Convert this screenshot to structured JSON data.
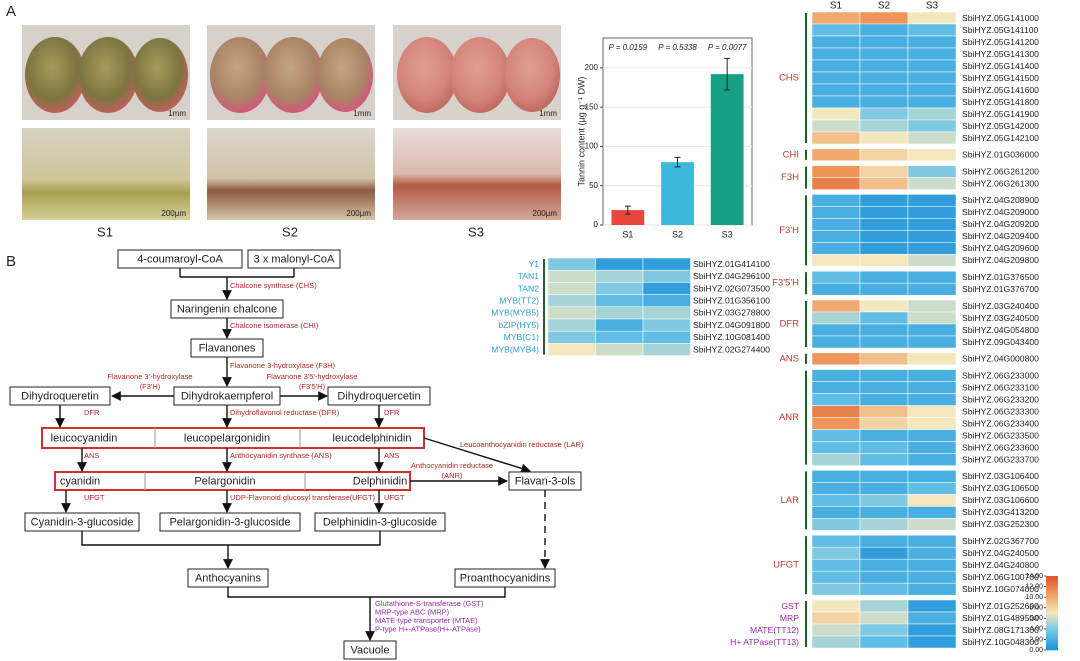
{
  "panel_labels": [
    "A",
    "B"
  ],
  "photos": {
    "samples": [
      "S1",
      "S2",
      "S3"
    ],
    "top_scale": "1mm",
    "bottom_scale": "200μm"
  },
  "chart_data": [
    {
      "type": "bar",
      "ylabel": "Tannin content (μg g⁻¹ DW)",
      "categories": [
        "S1",
        "S2",
        "S3"
      ],
      "values": [
        19,
        80,
        192
      ],
      "errors": [
        5,
        6,
        20
      ],
      "colors": [
        "#e8473d",
        "#3cb8da",
        "#16a085"
      ],
      "ylim": [
        0,
        238
      ],
      "yticks": [
        0,
        50,
        100,
        150,
        200
      ],
      "grid": true,
      "annotations": [
        "P = 0.0159",
        "P = 0.5338",
        "P = 0.0077"
      ]
    },
    {
      "type": "heatmap",
      "clim": [
        0,
        14
      ],
      "colormap": [
        "#1a8fd6",
        "#6cc5e8",
        "#f3e8bd",
        "#f0a062",
        "#e0522a"
      ],
      "label_color": "#2a9fd6",
      "groups": [
        {
          "rows": [
            {
              "label": "Y1",
              "gene": "SbiHYZ.01G414100",
              "values": [
                4,
                1,
                1
              ]
            },
            {
              "label": "TAN1",
              "gene": "SbiHYZ.04G296100",
              "values": [
                6,
                5,
                4
              ]
            },
            {
              "label": "TAN2",
              "gene": "SbiHYZ.02G073500",
              "values": [
                6,
                4,
                1
              ]
            },
            {
              "label": "MYB(TT2)",
              "gene": "SbiHYZ.01G356100",
              "values": [
                5,
                3,
                2
              ]
            },
            {
              "label": "MYB(MYB5)",
              "gene": "SbiHYZ.03G278800",
              "values": [
                6,
                5,
                5
              ]
            },
            {
              "label": "bZIP(HY5)",
              "gene": "SbiHYZ.04G091800",
              "values": [
                5,
                2,
                4
              ]
            },
            {
              "label": "MYB(C1)",
              "gene": "SbiHYZ.10G081400",
              "values": [
                4,
                3,
                3
              ]
            },
            {
              "label": "MYB(MYB4)",
              "gene": "SbiHYZ.02G274400",
              "values": [
                7,
                6,
                5
              ]
            }
          ]
        }
      ]
    },
    {
      "type": "heatmap",
      "columns": [
        "S1",
        "S2",
        "S3"
      ],
      "clim": [
        0,
        14
      ],
      "colormap": [
        "#1a8fd6",
        "#6cc5e8",
        "#f3e8bd",
        "#f0a062",
        "#e0522a"
      ],
      "label_color": "#c0392b",
      "row_label_color": "#9b27af",
      "colorbar_ticks": [
        {
          "value": 14,
          "label": "14.00"
        },
        {
          "value": 12,
          "label": "12.00"
        },
        {
          "value": 10,
          "label": "10.00"
        },
        {
          "value": 8,
          "label": "8.00"
        },
        {
          "value": 6,
          "label": "6.00"
        },
        {
          "value": 4,
          "label": "4.00"
        },
        {
          "value": 2,
          "label": "2.00"
        },
        {
          "value": 0,
          "label": "0.00"
        }
      ],
      "groups": [
        {
          "label": "CHS",
          "rows": [
            {
              "gene": "SbiHYZ.05G141000",
              "values": [
                10,
                11,
                7
              ]
            },
            {
              "gene": "SbiHYZ.05G141100",
              "values": [
                3,
                2,
                3
              ]
            },
            {
              "gene": "SbiHYZ.05G141200",
              "values": [
                2,
                2,
                2
              ]
            },
            {
              "gene": "SbiHYZ.05G141300",
              "values": [
                2,
                2,
                2
              ]
            },
            {
              "gene": "SbiHYZ.05G141400",
              "values": [
                2,
                2,
                2
              ]
            },
            {
              "gene": "SbiHYZ.05G141500",
              "values": [
                2,
                2,
                2
              ]
            },
            {
              "gene": "SbiHYZ.05G141600",
              "values": [
                2,
                2,
                2
              ]
            },
            {
              "gene": "SbiHYZ.05G141800",
              "values": [
                2,
                2,
                2
              ]
            },
            {
              "gene": "SbiHYZ.05G141900",
              "values": [
                7,
                4,
                5
              ]
            },
            {
              "gene": "SbiHYZ.05G142000",
              "values": [
                6,
                5,
                4
              ]
            },
            {
              "gene": "SbiHYZ.05G142100",
              "values": [
                9,
                7,
                6
              ]
            }
          ]
        },
        {
          "label": "CHI",
          "rows": [
            {
              "gene": "SbiHYZ.01G036000",
              "values": [
                10,
                8,
                7
              ]
            }
          ]
        },
        {
          "label": "F3H",
          "rows": [
            {
              "gene": "SbiHYZ.06G261200",
              "values": [
                11,
                8,
                4
              ]
            },
            {
              "gene": "SbiHYZ.06G261300",
              "values": [
                12,
                9,
                6
              ]
            }
          ]
        },
        {
          "label": "F3'H",
          "rows": [
            {
              "gene": "SbiHYZ.04G208900",
              "values": [
                2,
                1,
                1
              ]
            },
            {
              "gene": "SbiHYZ.04G209000",
              "values": [
                2,
                1,
                1
              ]
            },
            {
              "gene": "SbiHYZ.04G209200",
              "values": [
                2,
                1,
                1
              ]
            },
            {
              "gene": "SbiHYZ.04G209400",
              "values": [
                2,
                1,
                1
              ]
            },
            {
              "gene": "SbiHYZ.04G209600",
              "values": [
                2,
                1,
                1
              ]
            },
            {
              "gene": "SbiHYZ.04G209800",
              "values": [
                7,
                7,
                6
              ]
            }
          ]
        },
        {
          "label": "F3'5'H",
          "rows": [
            {
              "gene": "SbiHYZ.01G376500",
              "values": [
                3,
                2,
                2
              ]
            },
            {
              "gene": "SbiHYZ.01G376700",
              "values": [
                2,
                2,
                2
              ]
            }
          ]
        },
        {
          "label": "DFR",
          "rows": [
            {
              "gene": "SbiHYZ.03G240400",
              "values": [
                10,
                7,
                6
              ]
            },
            {
              "gene": "SbiHYZ.03G240500",
              "values": [
                5,
                3,
                6
              ]
            },
            {
              "gene": "SbiHYZ.04G054800",
              "values": [
                2,
                2,
                2
              ]
            },
            {
              "gene": "SbiHYZ.09G043400",
              "values": [
                2,
                2,
                2
              ]
            }
          ]
        },
        {
          "label": "ANS",
          "rows": [
            {
              "gene": "SbiHYZ.04G000800",
              "values": [
                11,
                9,
                7
              ]
            }
          ]
        },
        {
          "label": "ANR",
          "rows": [
            {
              "gene": "SbiHYZ.06G233000",
              "values": [
                2,
                2,
                2
              ]
            },
            {
              "gene": "SbiHYZ.06G233100",
              "values": [
                2,
                2,
                2
              ]
            },
            {
              "gene": "SbiHYZ.06G233200",
              "values": [
                3,
                2,
                2
              ]
            },
            {
              "gene": "SbiHYZ.06G233300",
              "values": [
                12,
                9,
                7
              ]
            },
            {
              "gene": "SbiHYZ.06G233400",
              "values": [
                11,
                8,
                7
              ]
            },
            {
              "gene": "SbiHYZ.06G233500",
              "values": [
                3,
                2,
                2
              ]
            },
            {
              "gene": "SbiHYZ.06G233600",
              "values": [
                3,
                3,
                2
              ]
            },
            {
              "gene": "SbiHYZ.06G233700",
              "values": [
                5,
                3,
                2
              ]
            }
          ]
        },
        {
          "label": "LAR",
          "rows": [
            {
              "gene": "SbiHYZ.03G106400",
              "values": [
                2,
                2,
                2
              ]
            },
            {
              "gene": "SbiHYZ.03G106500",
              "values": [
                2,
                2,
                3
              ]
            },
            {
              "gene": "SbiHYZ.03G106600",
              "values": [
                3,
                4,
                7
              ]
            },
            {
              "gene": "SbiHYZ.03G413200",
              "values": [
                2,
                2,
                2
              ]
            },
            {
              "gene": "SbiHYZ.03G252300",
              "values": [
                4,
                5,
                6
              ]
            }
          ]
        },
        {
          "label": "UFGT",
          "rows": [
            {
              "gene": "SbiHYZ.02G367700",
              "values": [
                3,
                2,
                2
              ]
            },
            {
              "gene": "SbiHYZ.04G240500",
              "values": [
                4,
                1,
                2
              ]
            },
            {
              "gene": "SbiHYZ.04G240800",
              "values": [
                3,
                2,
                2
              ]
            },
            {
              "gene": "SbiHYZ.06G100700",
              "values": [
                3,
                2,
                2
              ]
            },
            {
              "gene": "SbiHYZ.10G074000",
              "values": [
                4,
                3,
                2
              ]
            }
          ]
        },
        {
          "rows": [
            {
              "label": "GST",
              "gene": "SbiHYZ.01G252600",
              "values": [
                7,
                5,
                1
              ]
            },
            {
              "label": "MRP",
              "gene": "SbiHYZ.01G489500",
              "values": [
                8,
                6,
                2
              ]
            },
            {
              "label": "MATE(TT12)",
              "gene": "SbiHYZ.08G171300",
              "values": [
                6,
                4,
                1
              ]
            },
            {
              "label": "H+ ATPase(TT13)",
              "gene": "SbiHYZ.10G048300",
              "values": [
                5,
                3,
                1
              ]
            }
          ]
        }
      ]
    }
  ],
  "pathway": {
    "nodes": [
      "4-coumaroyl-CoA",
      "3 x malonyl-CoA",
      "Naringenin chalcone",
      "Flavanones",
      "Dihydroqueretin",
      "Dihydrokaempferol",
      "Dihydroquercetin",
      "leucocyanidin",
      "leucopelargonidin",
      "leucodelphinidin",
      "cyanidin",
      "Pelargonidin",
      "Delphinidin",
      "Flavan-3-ols",
      "Cyanidin-3-glucoside",
      "Pelargonidin-3-glucoside",
      "Delphinidin-3-glucoside",
      "Anthocyanins",
      "Proanthocyanidins",
      "Vacuole"
    ],
    "enzymes": [
      [
        "Chalcone synthase (CHS)"
      ],
      [
        "Chalcone isomerase (CHI)"
      ],
      [
        "Flavanone 3-hydroxylase (F3H)"
      ],
      [
        "Flavanone 3'-hydroxylase",
        "(F3'H)"
      ],
      [
        "Flavanone 3'5'-hydroxylase",
        "(F3'5'H)"
      ],
      [
        "DFR"
      ],
      [
        "Dihydroflavonol reductase (DFR)"
      ],
      [
        "DFR"
      ],
      [
        "Leucoanthocyanidin reductase (LAR)"
      ],
      [
        "ANS"
      ],
      [
        "Anthocyanidin synthase (ANS)"
      ],
      [
        "ANS"
      ],
      [
        "Anthocyanidin reductase",
        "(ANR)"
      ],
      [
        "UFGT"
      ],
      [
        "UDP-Flavonoid glucosyl transferase(UFGT)"
      ],
      [
        "UFGT"
      ]
    ],
    "transport": [
      "Glutathione-S-transferase (GST)",
      "MRP-type ABC (MRP)",
      "MATE-type transporter (MTAE)",
      "P-type H+-ATPase(H+-ATPase)"
    ]
  }
}
